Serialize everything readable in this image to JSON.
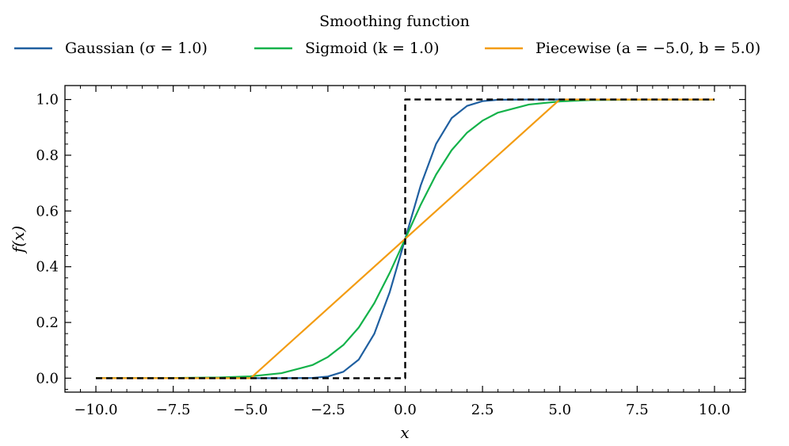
{
  "chart_data": {
    "type": "line",
    "title": "",
    "xlabel": "x",
    "ylabel": "f(x)",
    "xlim": [
      -11.0,
      11.0
    ],
    "ylim": [
      -0.05,
      1.05
    ],
    "xticks": [
      -10.0,
      -7.5,
      -5.0,
      -2.5,
      0.0,
      2.5,
      5.0,
      7.5,
      10.0
    ],
    "xtick_labels": [
      "−10.0",
      "−7.5",
      "−5.0",
      "−2.5",
      "0.0",
      "2.5",
      "5.0",
      "7.5",
      "10.0"
    ],
    "yticks": [
      0.0,
      0.2,
      0.4,
      0.6,
      0.8,
      1.0
    ],
    "ytick_labels": [
      "0.0",
      "0.2",
      "0.4",
      "0.6",
      "0.8",
      "1.0"
    ],
    "legend_title": "Smoothing function",
    "legend_position": "top-center",
    "series": [
      {
        "name": "Gaussian (σ = 1.0)",
        "color": "#1f5fa0",
        "style": "solid",
        "x": [
          -10,
          -5,
          -4,
          -3,
          -2.5,
          -2,
          -1.5,
          -1,
          -0.5,
          0,
          0.5,
          1,
          1.5,
          2,
          2.5,
          3,
          4,
          5,
          10
        ],
        "y": [
          0.0,
          0.0,
          0.0,
          0.001,
          0.006,
          0.023,
          0.067,
          0.159,
          0.309,
          0.5,
          0.691,
          0.841,
          0.933,
          0.977,
          0.994,
          0.999,
          1.0,
          1.0,
          1.0
        ]
      },
      {
        "name": "Sigmoid (k = 1.0)",
        "color": "#13b24a",
        "style": "solid",
        "x": [
          -10,
          -8,
          -6,
          -5,
          -4,
          -3,
          -2.5,
          -2,
          -1.5,
          -1,
          -0.5,
          0,
          0.5,
          1,
          1.5,
          2,
          2.5,
          3,
          4,
          5,
          6,
          8,
          10
        ],
        "y": [
          0.0,
          0.0003,
          0.0025,
          0.0067,
          0.018,
          0.047,
          0.076,
          0.119,
          0.182,
          0.269,
          0.378,
          0.5,
          0.622,
          0.731,
          0.818,
          0.881,
          0.924,
          0.953,
          0.982,
          0.993,
          0.998,
          1.0,
          1.0
        ]
      },
      {
        "name": "Piecewise (a = −5.0, b = 5.0)",
        "color": "#f39c12",
        "style": "solid",
        "x": [
          -10,
          -5,
          5,
          10
        ],
        "y": [
          0.0,
          0.0,
          1.0,
          1.0
        ]
      },
      {
        "name": "step",
        "color": "#000000",
        "style": "dashed",
        "in_legend": false,
        "x": [
          -10,
          0,
          0,
          10
        ],
        "y": [
          0.0,
          0.0,
          1.0,
          1.0
        ]
      }
    ]
  }
}
